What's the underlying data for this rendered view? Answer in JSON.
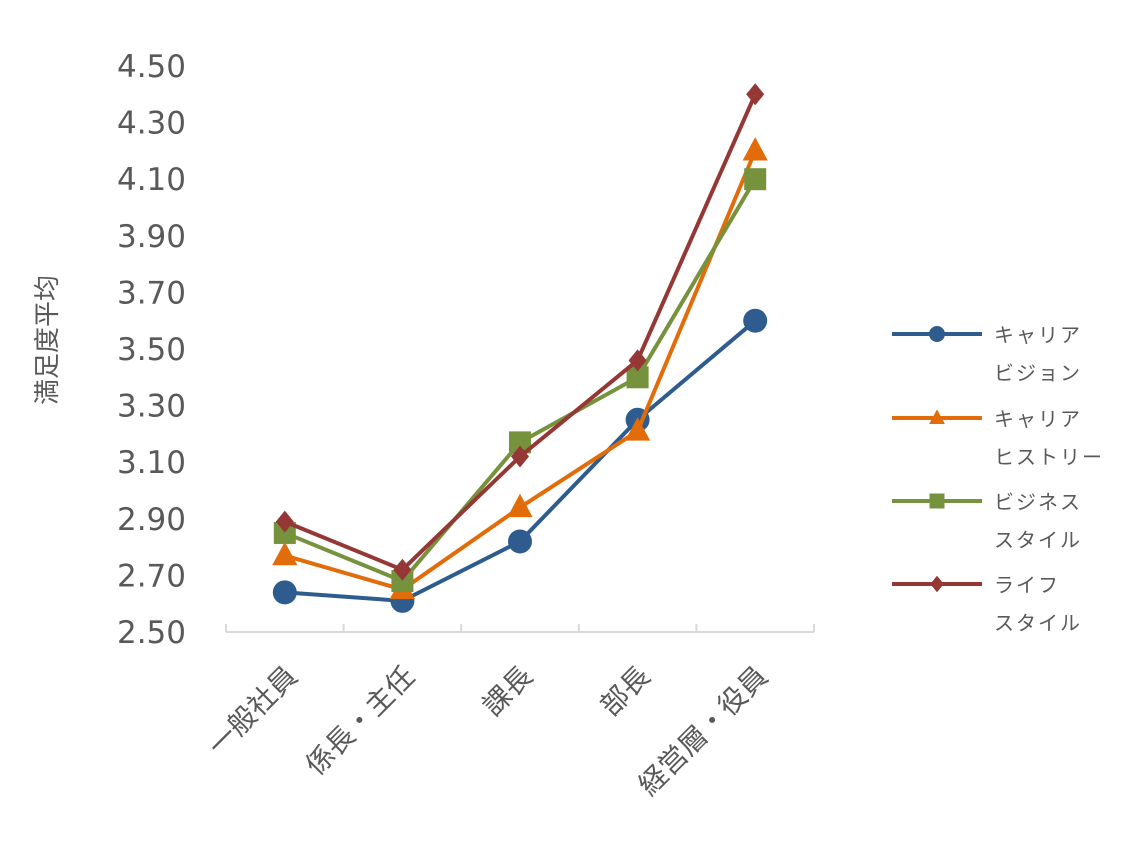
{
  "chart_data": {
    "type": "line",
    "categories": [
      "一般社員",
      "係長・主任",
      "課長",
      "部長",
      "経営層・役員"
    ],
    "ylabel": "満足度平均",
    "ylim": [
      2.5,
      4.5
    ],
    "yticks": [
      "2.50",
      "2.70",
      "2.90",
      "3.10",
      "3.30",
      "3.50",
      "3.70",
      "3.90",
      "4.10",
      "4.30",
      "4.50"
    ],
    "grid": false,
    "legend_position": "right",
    "series": [
      {
        "name": "キャリアビジョン",
        "legend_lines": [
          "キャリア",
          "ビジョン"
        ],
        "color": "#2e5c8e",
        "marker": "circle",
        "values": [
          2.64,
          2.61,
          2.82,
          3.25,
          3.6
        ]
      },
      {
        "name": "キャリアヒストリー",
        "legend_lines": [
          "キャリア",
          "ヒストリー"
        ],
        "color": "#e36c0a",
        "marker": "triangle",
        "values": [
          2.77,
          2.65,
          2.94,
          3.21,
          4.2
        ]
      },
      {
        "name": "ビジネススタイル",
        "legend_lines": [
          "ビジネス",
          "スタイル"
        ],
        "color": "#76923c",
        "marker": "square",
        "values": [
          2.85,
          2.68,
          3.17,
          3.4,
          4.1
        ]
      },
      {
        "name": "ライフスタイル",
        "legend_lines": [
          "ライフ",
          "スタイル"
        ],
        "color": "#953735",
        "marker": "diamond",
        "values": [
          2.89,
          2.72,
          3.12,
          3.46,
          4.4
        ]
      }
    ]
  }
}
